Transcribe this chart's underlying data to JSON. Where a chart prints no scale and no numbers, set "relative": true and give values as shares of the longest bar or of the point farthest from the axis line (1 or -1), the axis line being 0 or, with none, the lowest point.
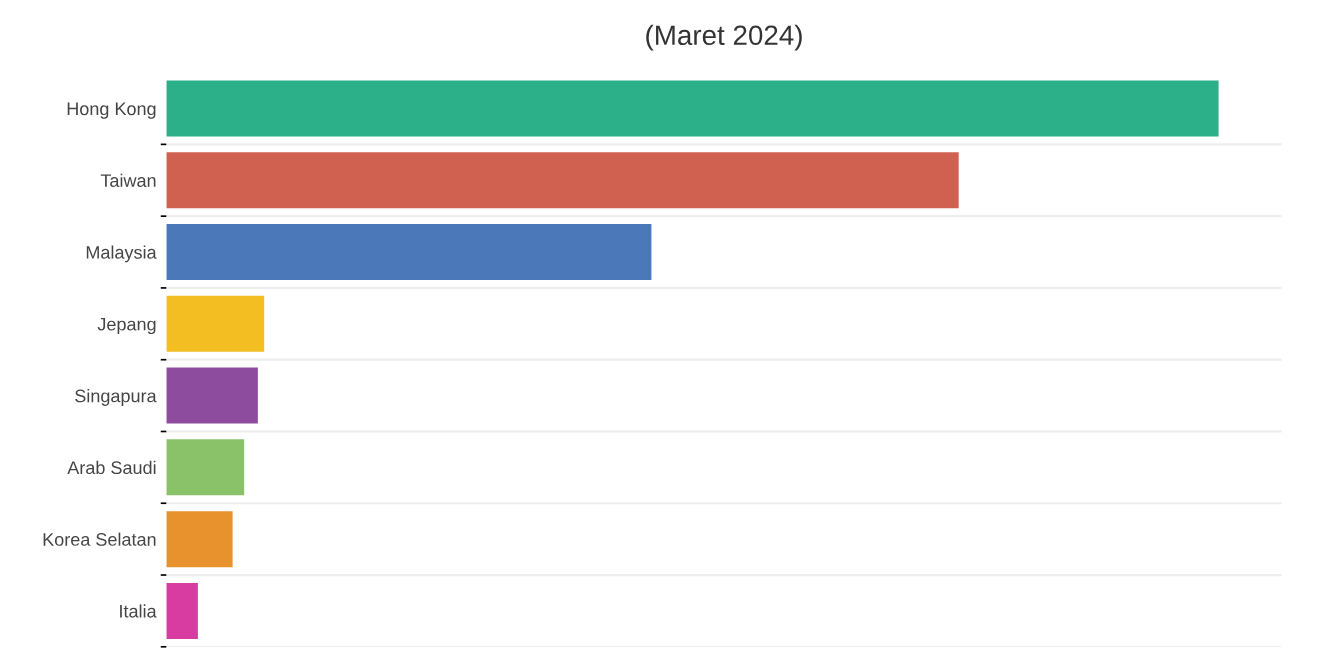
{
  "chart_data": {
    "type": "bar",
    "orientation": "horizontal",
    "relative": true,
    "title": "(Maret 2024)",
    "categories": [
      "Hong Kong",
      "Taiwan",
      "Malaysia",
      "Jepang",
      "Singapura",
      "Arab Saudi",
      "Korea Selatan",
      "Italia"
    ],
    "values": [
      1,
      0.753,
      0.461,
      0.093,
      0.087,
      0.074,
      0.063,
      0.03
    ],
    "colors": [
      "#2bb08a",
      "#d06050",
      "#4a78b8",
      "#f2be22",
      "#8e4c9e",
      "#8ac26a",
      "#e8922e",
      "#d83ca0"
    ],
    "grid": "y"
  }
}
